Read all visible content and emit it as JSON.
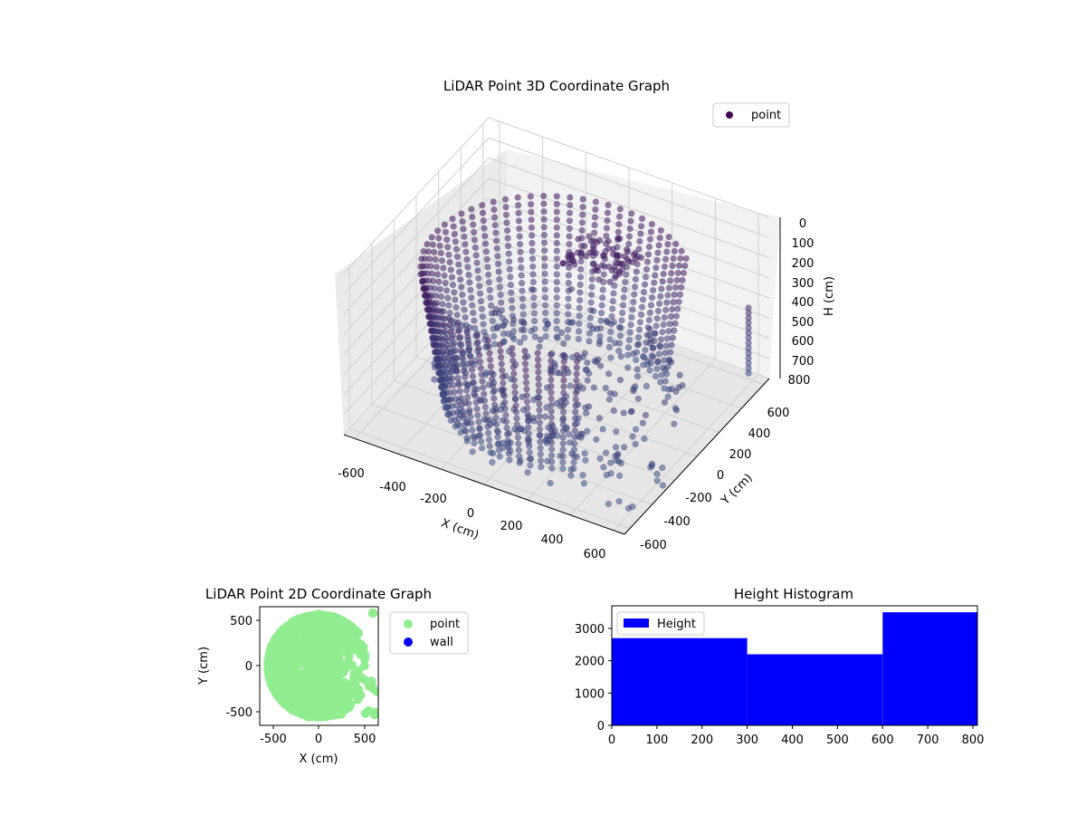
{
  "chart_data": [
    {
      "type": "scatter",
      "projection": "3d",
      "title": "LiDAR Point 3D Coordinate Graph",
      "xlabel": "X (cm)",
      "ylabel": "Y (cm)",
      "zlabel": "H (cm)",
      "x_ticks": [
        "-600",
        "-400",
        "-200",
        "0",
        "200",
        "400",
        "600"
      ],
      "y_ticks": [
        "-600",
        "-400",
        "-200",
        "0",
        "200",
        "400",
        "600"
      ],
      "z_ticks": [
        "0",
        "100",
        "200",
        "300",
        "400",
        "500",
        "600",
        "700",
        "800"
      ],
      "xlim": [
        -650,
        650
      ],
      "ylim": [
        -650,
        650
      ],
      "zlim": [
        0,
        800
      ],
      "z_inverted": true,
      "grid": true,
      "legend": "top-right",
      "series": [
        {
          "name": "point",
          "color": "#440154",
          "colormap": "viridis"
        }
      ]
    },
    {
      "type": "scatter",
      "title": "LiDAR Point 2D Coordinate Graph",
      "xlabel": "X (cm)",
      "ylabel": "Y (cm)",
      "x_ticks": [
        "-500",
        "0",
        "500"
      ],
      "y_ticks": [
        "500",
        "0",
        "-500"
      ],
      "xlim": [
        -650,
        650
      ],
      "ylim": [
        -650,
        650
      ],
      "legend": "outside-right",
      "series": [
        {
          "name": "point",
          "color": "#90ee90"
        },
        {
          "name": "wall",
          "color": "#0000ee"
        }
      ]
    },
    {
      "type": "bar",
      "title": "Height Histogram",
      "bins": [
        [
          0,
          300
        ],
        [
          300,
          600
        ],
        [
          600,
          810
        ]
      ],
      "values": [
        2700,
        2200,
        3500
      ],
      "x_ticks": [
        "0",
        "100",
        "200",
        "300",
        "400",
        "500",
        "600",
        "700",
        "800"
      ],
      "y_ticks": [
        "0",
        "1000",
        "2000",
        "3000"
      ],
      "xlim": [
        0,
        810
      ],
      "ylim": [
        0,
        3700
      ],
      "legend": "top-left",
      "series": [
        {
          "name": "Height",
          "color": "#0000ff"
        }
      ]
    }
  ]
}
